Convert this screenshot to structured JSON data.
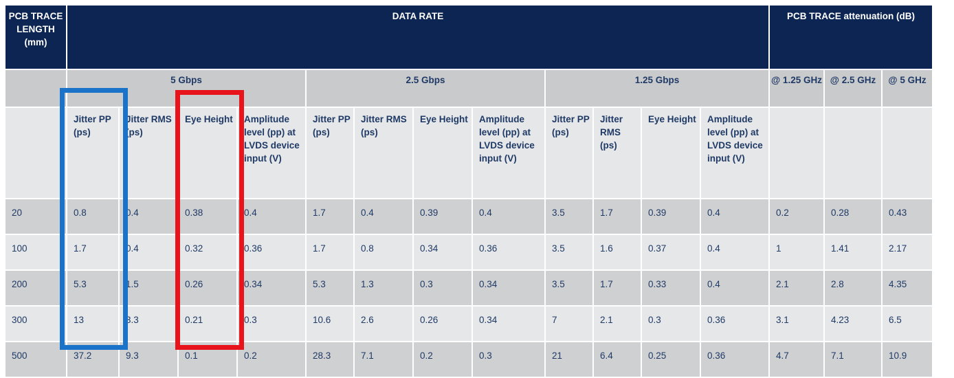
{
  "table": {
    "header": {
      "length": "PCB TRACE LENGTH (mm)",
      "data_rate": "DATA RATE",
      "attenuation": "PCB TRACE attenuation (dB)"
    },
    "rates": [
      "5 Gbps",
      "2.5 Gbps",
      "1.25 Gbps"
    ],
    "freqs": [
      "@ 1.25 GHz",
      "@ 2.5 GHz",
      "@ 5 GHz"
    ],
    "metrics": [
      "Jitter PP (ps)",
      "Jitter RMS (ps)",
      "Eye Height",
      "Amplitude level (pp) at LVDS device input (V)"
    ],
    "rows": [
      [
        "20",
        "0.8",
        "0.4",
        "0.38",
        "0.4",
        "1.7",
        "0.4",
        "0.39",
        "0.4",
        "3.5",
        "1.7",
        "0.39",
        "0.4",
        "0.2",
        "0.28",
        "0.43"
      ],
      [
        "100",
        "1.7",
        "0.4",
        "0.32",
        "0.36",
        "1.7",
        "0.8",
        "0.34",
        "0.36",
        "3.5",
        "1.6",
        "0.37",
        "0.4",
        "1",
        "1.41",
        "2.17"
      ],
      [
        "200",
        "5.3",
        "1.5",
        "0.26",
        "0.34",
        "5.3",
        "1.3",
        "0.3",
        "0.34",
        "3.5",
        "1.7",
        "0.33",
        "0.4",
        "2.1",
        "2.8",
        "4.35"
      ],
      [
        "300",
        "13",
        "3.3",
        "0.21",
        "0.3",
        "10.6",
        "2.6",
        "0.26",
        "0.34",
        "7",
        "2.1",
        "0.3",
        "0.36",
        "3.1",
        "4.23",
        "6.5"
      ],
      [
        "500",
        "37.2",
        "9.3",
        "0.1",
        "0.2",
        "28.3",
        "7.1",
        "0.2",
        "0.3",
        "21",
        "6.4",
        "0.25",
        "0.36",
        "4.7",
        "7.1",
        "10.9"
      ]
    ]
  },
  "highlights": {
    "jitter_pp_5gbps": "#1a73c8",
    "eye_height_5gbps": "#e8141b"
  }
}
